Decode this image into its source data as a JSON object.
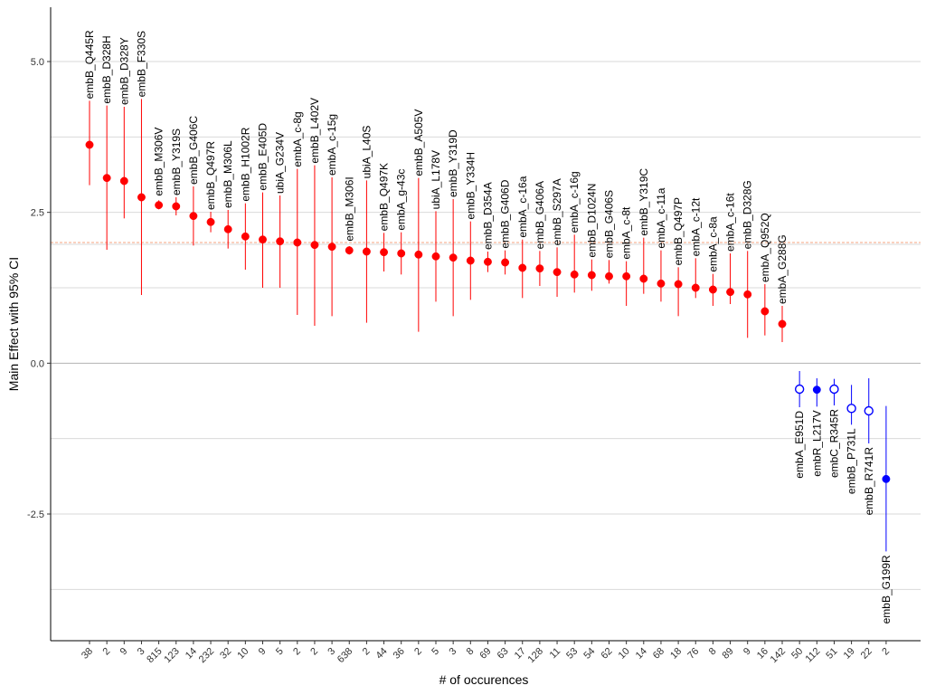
{
  "chart_data": {
    "type": "scatter",
    "title": "",
    "xlabel": "# of occurences",
    "ylabel": "Main Effect with 95% CI",
    "ylim": [
      -4.6,
      5.9
    ],
    "y_ticks": [
      -2.5,
      0,
      2.5,
      5
    ],
    "y_tick_labels": [
      "-2.5",
      "0.0",
      "2.5",
      "5.0"
    ],
    "grid": "horizontal",
    "reference_lines": [
      0,
      2.0
    ],
    "colors": {
      "positive": "#ff0000",
      "negative": "#0000ff",
      "gridline": "#d9d9d9",
      "zero_line": "#b3b3b3",
      "ref_line": "#f4a582"
    },
    "x_tick_labels": [
      "38",
      "2",
      "9",
      "3",
      "815",
      "123",
      "14",
      "232",
      "32",
      "10",
      "9",
      "5",
      "2",
      "2",
      "3",
      "638",
      "2",
      "44",
      "36",
      "2",
      "5",
      "3",
      "8",
      "69",
      "63",
      "17",
      "128",
      "11",
      "53",
      "54",
      "62",
      "10",
      "14",
      "68",
      "18",
      "76",
      "8",
      "89",
      "9",
      "16",
      "142",
      "50",
      "112",
      "51",
      "19",
      "22",
      "2"
    ],
    "mutations": [
      "embB_Q445R",
      "embB_D328H",
      "embB_D328Y",
      "embB_F330S",
      "embB_M306V",
      "embB_Y319S",
      "embB_G406C",
      "embB_Q497R",
      "embB_M306L",
      "embB_H1002R",
      "embB_E405D",
      "ubiA_G234V",
      "embA_c-8g",
      "embB_L402V",
      "embA_c-15g",
      "embB_M306I",
      "ubiA_L40S",
      "embB_Q497K",
      "embA_g-43c",
      "embB_A505V",
      "ubiA_L178V",
      "embB_Y319D",
      "embB_Y334H",
      "embB_D354A",
      "embB_G406D",
      "embA_c-16a",
      "embB_G406A",
      "embB_S297A",
      "embA_c-16g",
      "embB_D1024N",
      "embB_G406S",
      "embA_c-8t",
      "embB_Y319C",
      "embA_c-11a",
      "embB_Q497P",
      "embA_c-12t",
      "embA_c-8a",
      "embA_c-16t",
      "embB_D328G",
      "embA_Q952Q",
      "embA_G288G",
      "embA_E951D",
      "embR_L217V",
      "embC_R345R",
      "embB_P731L",
      "embB_R741R",
      "embB_G199R"
    ],
    "estimates": [
      3.62,
      3.07,
      3.02,
      2.75,
      2.62,
      2.6,
      2.44,
      2.34,
      2.22,
      2.1,
      2.05,
      2.02,
      2.0,
      1.96,
      1.93,
      1.87,
      1.85,
      1.84,
      1.82,
      1.8,
      1.77,
      1.75,
      1.7,
      1.68,
      1.67,
      1.58,
      1.57,
      1.51,
      1.47,
      1.46,
      1.44,
      1.44,
      1.4,
      1.32,
      1.31,
      1.25,
      1.22,
      1.18,
      1.14,
      0.86,
      0.65,
      -0.43,
      -0.44,
      -0.43,
      -0.75,
      -0.79,
      -1.92
    ],
    "ci_lower": [
      2.95,
      1.88,
      2.4,
      1.13,
      2.55,
      2.45,
      1.95,
      2.17,
      1.9,
      1.55,
      1.25,
      1.25,
      0.8,
      0.62,
      0.78,
      1.8,
      0.67,
      1.52,
      1.47,
      0.52,
      1.02,
      0.78,
      1.05,
      1.51,
      1.47,
      1.08,
      1.28,
      1.1,
      1.17,
      1.2,
      1.32,
      0.95,
      1.15,
      1.02,
      0.78,
      1.08,
      0.95,
      0.98,
      0.42,
      0.46,
      0.35,
      -0.73,
      -0.72,
      -0.7,
      -1.02,
      -1.33,
      -3.12
    ],
    "ci_upper": [
      4.35,
      4.27,
      4.25,
      4.38,
      2.7,
      2.75,
      2.93,
      2.51,
      2.54,
      2.65,
      2.83,
      2.78,
      3.22,
      3.28,
      3.08,
      1.94,
      3.03,
      2.16,
      2.17,
      3.07,
      2.52,
      2.72,
      2.35,
      1.85,
      1.87,
      2.05,
      1.86,
      1.92,
      2.13,
      1.72,
      1.71,
      1.69,
      2.08,
      1.87,
      1.59,
      1.74,
      1.48,
      1.82,
      1.86,
      1.31,
      0.95,
      -0.13,
      -0.25,
      -0.26,
      -0.36,
      -0.25,
      -0.71
    ],
    "open_marker": [
      false,
      false,
      false,
      false,
      false,
      false,
      false,
      false,
      false,
      false,
      false,
      false,
      false,
      false,
      false,
      false,
      false,
      false,
      false,
      false,
      false,
      false,
      false,
      false,
      false,
      false,
      false,
      false,
      false,
      false,
      false,
      false,
      false,
      false,
      false,
      false,
      false,
      false,
      false,
      false,
      false,
      true,
      false,
      true,
      true,
      true,
      false
    ]
  }
}
